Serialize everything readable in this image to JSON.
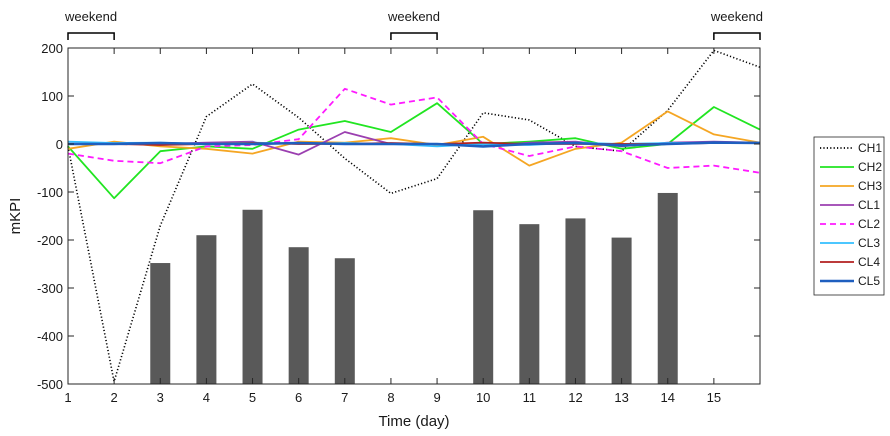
{
  "chart_data": {
    "type": "line",
    "xlabel": "Time  (day)",
    "ylabel": "mKPI",
    "xlim": [
      1,
      16
    ],
    "ylim": [
      -500,
      200
    ],
    "x_ticks": [
      "1",
      "2",
      "3",
      "4",
      "5",
      "6",
      "7",
      "8",
      "9",
      "10",
      "11",
      "12",
      "13",
      "14",
      "15"
    ],
    "y_ticks": [
      "200",
      "100",
      "0",
      "-100",
      "-200",
      "-300",
      "-400",
      "-500"
    ],
    "grid": false,
    "legend_position": "right",
    "annotations": [
      {
        "label": "weekend",
        "from": 1,
        "to": 2
      },
      {
        "label": "weekend",
        "from": 8,
        "to": 9
      },
      {
        "label": "weekend",
        "from": 15,
        "to": 16
      }
    ],
    "bars": {
      "x": [
        3,
        4,
        5,
        6,
        7,
        10,
        11,
        12,
        13,
        14
      ],
      "values": [
        -248,
        -190,
        -137,
        -215,
        -238,
        -138,
        -167,
        -155,
        -195,
        -102
      ],
      "color": "#595959"
    },
    "x": [
      1,
      2,
      3,
      4,
      5,
      6,
      7,
      8,
      9,
      10,
      11,
      12,
      13,
      14,
      15,
      16
    ],
    "series": [
      {
        "name": "CH1",
        "color": "#000000",
        "dash": "dotted",
        "values": [
          -5,
          -495,
          -170,
          57,
          125,
          55,
          -30,
          -103,
          -72,
          65,
          50,
          -5,
          -15,
          70,
          195,
          160
        ]
      },
      {
        "name": "CH2",
        "color": "#21e521",
        "dash": "solid",
        "values": [
          -5,
          -113,
          -15,
          -5,
          -10,
          30,
          48,
          25,
          85,
          0,
          5,
          12,
          -10,
          0,
          77,
          30
        ]
      },
      {
        "name": "CH3",
        "color": "#f5a623",
        "dash": "solid",
        "values": [
          -10,
          5,
          -5,
          -10,
          -20,
          5,
          3,
          12,
          -2,
          15,
          -45,
          -10,
          3,
          68,
          20,
          3
        ]
      },
      {
        "name": "CL1",
        "color": "#9b3fb0",
        "dash": "solid",
        "values": [
          0,
          0,
          0,
          3,
          5,
          -22,
          25,
          0,
          0,
          -5,
          3,
          5,
          -5,
          3,
          5,
          3
        ]
      },
      {
        "name": "CL2",
        "color": "#ff1aff",
        "dash": "dashed",
        "values": [
          -20,
          -35,
          -40,
          -5,
          -2,
          10,
          115,
          82,
          97,
          0,
          -25,
          -5,
          -15,
          -50,
          -45,
          -60
        ]
      },
      {
        "name": "CL3",
        "color": "#33bfff",
        "dash": "solid",
        "values": [
          5,
          2,
          3,
          0,
          3,
          0,
          2,
          0,
          -5,
          0,
          -2,
          3,
          0,
          2,
          3,
          3
        ]
      },
      {
        "name": "CL4",
        "color": "#b21f1f",
        "dash": "solid",
        "values": [
          0,
          0,
          -2,
          0,
          2,
          0,
          0,
          2,
          0,
          3,
          0,
          0,
          0,
          0,
          2,
          2
        ]
      },
      {
        "name": "CL5",
        "color": "#1f5fbf",
        "dash": "solid",
        "values": [
          0,
          0,
          2,
          0,
          0,
          2,
          0,
          0,
          0,
          -5,
          0,
          2,
          -3,
          0,
          3,
          2
        ]
      }
    ]
  }
}
